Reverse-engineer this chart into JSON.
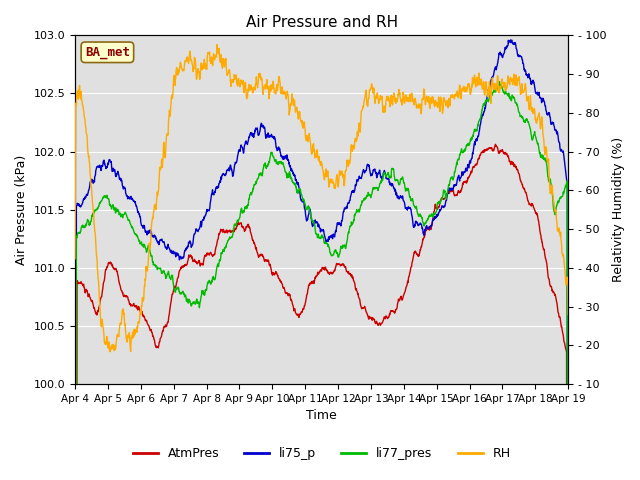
{
  "title": "Air Pressure and RH",
  "xlabel": "Time",
  "ylabel_left": "Air Pressure (kPa)",
  "ylabel_right": "Relativity Humidity (%)",
  "ylim_left": [
    100.0,
    103.0
  ],
  "ylim_right": [
    10,
    100
  ],
  "yticks_left": [
    100.0,
    100.5,
    101.0,
    101.5,
    102.0,
    102.5,
    103.0
  ],
  "yticks_right": [
    10,
    20,
    30,
    40,
    50,
    60,
    70,
    80,
    90,
    100
  ],
  "colors": {
    "AtmPres": "#cc0000",
    "li75_p": "#0000cc",
    "li77_pres": "#00bb00",
    "RH": "#ffaa00"
  },
  "bg_color": "#e0e0e0",
  "fig_bg": "#ffffff",
  "legend_label": "BA_met",
  "x_tick_labels": [
    "Apr 4",
    "Apr 5",
    "Apr 6",
    "Apr 7",
    "Apr 8",
    "Apr 9",
    "Apr 10",
    "Apr 11",
    "Apr 12",
    "Apr 13",
    "Apr 14",
    "Apr 15",
    "Apr 16",
    "Apr 17",
    "Apr 18",
    "Apr 19"
  ],
  "n_points": 1500
}
